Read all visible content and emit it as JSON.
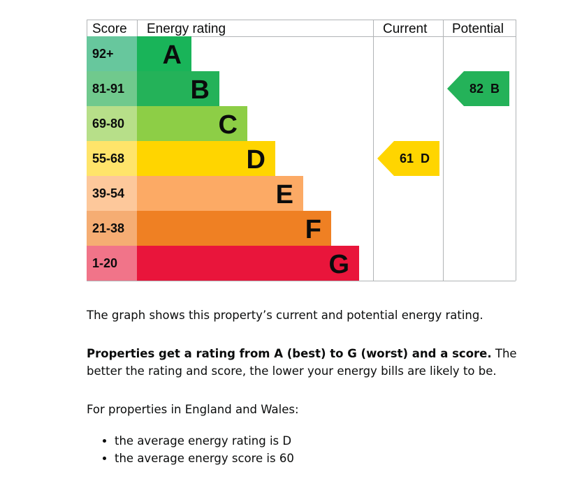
{
  "chart_data": {
    "type": "bar",
    "headers": {
      "score": "Score",
      "rating": "Energy rating",
      "current": "Current",
      "potential": "Potential"
    },
    "bands": [
      {
        "letter": "A",
        "range": "92+",
        "color": "#19b459",
        "score_bg": "#67c79d"
      },
      {
        "letter": "B",
        "range": "81-91",
        "color": "#24b259",
        "score_bg": "#70c98d"
      },
      {
        "letter": "C",
        "range": "69-80",
        "color": "#8dce46",
        "score_bg": "#b7df89"
      },
      {
        "letter": "D",
        "range": "55-68",
        "color": "#ffd500",
        "score_bg": "#ffe46a"
      },
      {
        "letter": "E",
        "range": "39-54",
        "color": "#fcaa65",
        "score_bg": "#fdc89b"
      },
      {
        "letter": "F",
        "range": "21-38",
        "color": "#ef8023",
        "score_bg": "#f5ad73"
      },
      {
        "letter": "G",
        "range": "1-20",
        "color": "#e9153b",
        "score_bg": "#f17489"
      }
    ],
    "current": {
      "score": 61,
      "letter": "D",
      "label": "61  D",
      "color": "#ffd500",
      "text_color": "#0b0c0c"
    },
    "potential": {
      "score": 82,
      "letter": "B",
      "label": "82  B",
      "color": "#24b259",
      "text_color": "#0b0c0c"
    }
  },
  "text": {
    "summary": "The graph shows this property’s current and potential energy rating.",
    "rating_bold": "Properties get a rating from A (best) to G (worst) and a score.",
    "rating_rest": " The better the rating and score, the lower your energy bills are likely to be.",
    "regional_intro": "For properties in England and Wales:",
    "averages": [
      "the average energy rating is D",
      "the average energy score is 60"
    ]
  }
}
